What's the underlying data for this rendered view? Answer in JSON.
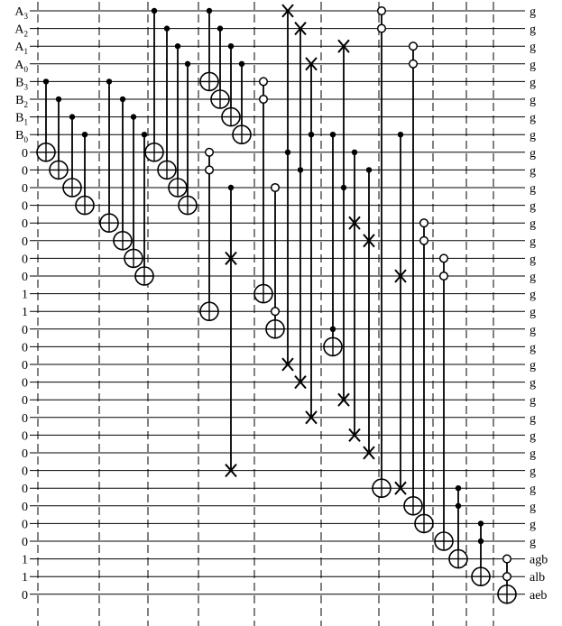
{
  "circuit": {
    "left_labels": [
      "A₃",
      "A₂",
      "A₁",
      "A₀",
      "B₃",
      "B₂",
      "B₁",
      "B₀",
      "0",
      "0",
      "0",
      "0",
      "0",
      "0",
      "0",
      "0",
      "1",
      "1",
      "0",
      "0",
      "0",
      "0",
      "0",
      "0",
      "0",
      "0",
      "0",
      "0",
      "0",
      "0",
      "0",
      "1",
      "1",
      "0"
    ],
    "right_labels": [
      "g",
      "g",
      "g",
      "g",
      "g",
      "g",
      "g",
      "g",
      "g",
      "g",
      "g",
      "g",
      "g",
      "g",
      "g",
      "g",
      "g",
      "g",
      "g",
      "g",
      "g",
      "g",
      "g",
      "g",
      "g",
      "g",
      "g",
      "g",
      "g",
      "g",
      "g",
      "agb",
      "alb",
      "aeb"
    ],
    "gates": [
      {
        "col": 0,
        "ctrls": [
          {
            "w": 4,
            "t": "dot"
          }
        ],
        "target": {
          "w": 8,
          "t": "xor"
        }
      },
      {
        "col": 1,
        "ctrls": [
          {
            "w": 5,
            "t": "dot"
          }
        ],
        "target": {
          "w": 9,
          "t": "xor"
        }
      },
      {
        "col": 2,
        "ctrls": [
          {
            "w": 6,
            "t": "dot"
          }
        ],
        "target": {
          "w": 10,
          "t": "xor"
        }
      },
      {
        "col": 3,
        "ctrls": [
          {
            "w": 7,
            "t": "dot"
          }
        ],
        "target": {
          "w": 11,
          "t": "xor"
        }
      },
      {
        "col": 4,
        "ctrls": [
          {
            "w": 4,
            "t": "dot"
          }
        ],
        "target": {
          "w": 12,
          "t": "xor"
        }
      },
      {
        "col": 5,
        "ctrls": [
          {
            "w": 5,
            "t": "dot"
          }
        ],
        "target": {
          "w": 13,
          "t": "xor"
        }
      },
      {
        "col": 6,
        "ctrls": [
          {
            "w": 6,
            "t": "dot"
          }
        ],
        "target": {
          "w": 14,
          "t": "xor"
        }
      },
      {
        "col": 7,
        "ctrls": [
          {
            "w": 7,
            "t": "dot"
          }
        ],
        "target": {
          "w": 15,
          "t": "xor"
        }
      },
      {
        "col": 8,
        "ctrls": [
          {
            "w": 0,
            "t": "dot"
          }
        ],
        "target": {
          "w": 8,
          "t": "xor"
        }
      },
      {
        "col": 9,
        "ctrls": [
          {
            "w": 1,
            "t": "dot"
          }
        ],
        "target": {
          "w": 9,
          "t": "xor"
        }
      },
      {
        "col": 10,
        "ctrls": [
          {
            "w": 2,
            "t": "dot"
          }
        ],
        "target": {
          "w": 10,
          "t": "xor"
        }
      },
      {
        "col": 11,
        "ctrls": [
          {
            "w": 3,
            "t": "dot"
          }
        ],
        "target": {
          "w": 11,
          "t": "xor"
        }
      },
      {
        "col": 12,
        "ctrls": [
          {
            "w": 0,
            "t": "dot"
          }
        ],
        "target": {
          "w": 4,
          "t": "xor"
        }
      },
      {
        "col": 13,
        "ctrls": [
          {
            "w": 1,
            "t": "dot"
          }
        ],
        "target": {
          "w": 5,
          "t": "xor"
        }
      },
      {
        "col": 14,
        "ctrls": [
          {
            "w": 2,
            "t": "dot"
          }
        ],
        "target": {
          "w": 6,
          "t": "xor"
        }
      },
      {
        "col": 15,
        "ctrls": [
          {
            "w": 3,
            "t": "dot"
          }
        ],
        "target": {
          "w": 7,
          "t": "xor"
        }
      },
      {
        "col": 12,
        "ctrls": [
          {
            "w": 8,
            "t": "open"
          },
          {
            "w": 9,
            "t": "open"
          }
        ],
        "target": {
          "w": 17,
          "t": "xor"
        }
      },
      {
        "col": 14,
        "ctrls": [
          {
            "w": 10,
            "t": "dot"
          }
        ],
        "target": {
          "w": 14,
          "t": "swap"
        },
        "swap2": {
          "w": 26,
          "t": "swap"
        }
      },
      {
        "col": 16,
        "ctrls": [
          {
            "w": 4,
            "t": "open"
          },
          {
            "w": 5,
            "t": "open"
          }
        ],
        "target": {
          "w": 16,
          "t": "xor"
        }
      },
      {
        "col": 17,
        "ctrls": [
          {
            "w": 10,
            "t": "open"
          },
          {
            "w": 17,
            "t": "open"
          }
        ],
        "target": {
          "w": 18,
          "t": "xor"
        }
      },
      {
        "col": 18,
        "ctrls": [
          {
            "w": 8,
            "t": "dot"
          }
        ],
        "target": {
          "w": 0,
          "t": "swap"
        },
        "swap2": {
          "w": 20,
          "t": "swap"
        }
      },
      {
        "col": 19,
        "ctrls": [
          {
            "w": 9,
            "t": "dot"
          }
        ],
        "target": {
          "w": 1,
          "t": "swap"
        },
        "swap2": {
          "w": 21,
          "t": "swap"
        }
      },
      {
        "col": 20,
        "ctrls": [
          {
            "w": 7,
            "t": "dot"
          }
        ],
        "target": {
          "w": 3,
          "t": "swap"
        },
        "swap2": {
          "w": 23,
          "t": "swap"
        }
      },
      {
        "col": 21,
        "ctrls": [
          {
            "w": 7,
            "t": "dot"
          },
          {
            "w": 18,
            "t": "dot"
          }
        ],
        "target": {
          "w": 19,
          "t": "xor"
        }
      },
      {
        "col": 22,
        "ctrls": [
          {
            "w": 10,
            "t": "dot"
          }
        ],
        "target": {
          "w": 2,
          "t": "swap"
        },
        "swap2": {
          "w": 22,
          "t": "swap"
        }
      },
      {
        "col": 23,
        "ctrls": [
          {
            "w": 8,
            "t": "dot"
          }
        ],
        "target": {
          "w": 12,
          "t": "swap"
        },
        "swap2": {
          "w": 24,
          "t": "swap"
        }
      },
      {
        "col": 24,
        "ctrls": [
          {
            "w": 9,
            "t": "dot"
          }
        ],
        "target": {
          "w": 13,
          "t": "swap"
        },
        "swap2": {
          "w": 25,
          "t": "swap"
        }
      },
      {
        "col": 25,
        "ctrls": [
          {
            "w": 0,
            "t": "open"
          },
          {
            "w": 1,
            "t": "open"
          }
        ],
        "target": {
          "w": 27,
          "t": "xor"
        }
      },
      {
        "col": 26,
        "ctrls": [
          {
            "w": 7,
            "t": "dot"
          }
        ],
        "target": {
          "w": 15,
          "t": "swap"
        },
        "swap2": {
          "w": 27,
          "t": "swap"
        }
      },
      {
        "col": 27,
        "ctrls": [
          {
            "w": 2,
            "t": "open"
          },
          {
            "w": 3,
            "t": "open"
          }
        ],
        "target": {
          "w": 28,
          "t": "xor"
        }
      },
      {
        "col": 28,
        "ctrls": [
          {
            "w": 12,
            "t": "open"
          },
          {
            "w": 13,
            "t": "open"
          }
        ],
        "target": {
          "w": 29,
          "t": "xor"
        }
      },
      {
        "col": 29,
        "ctrls": [
          {
            "w": 14,
            "t": "open"
          },
          {
            "w": 15,
            "t": "open"
          }
        ],
        "target": {
          "w": 30,
          "t": "xor"
        }
      },
      {
        "col": 30,
        "ctrls": [
          {
            "w": 27,
            "t": "dot"
          },
          {
            "w": 28,
            "t": "dot"
          }
        ],
        "target": {
          "w": 31,
          "t": "xor"
        }
      },
      {
        "col": 31,
        "ctrls": [
          {
            "w": 29,
            "t": "dot"
          },
          {
            "w": 30,
            "t": "dot"
          }
        ],
        "target": {
          "w": 32,
          "t": "xor"
        }
      },
      {
        "col": 32,
        "ctrls": [
          {
            "w": 31,
            "t": "open"
          },
          {
            "w": 32,
            "t": "open"
          }
        ],
        "target": {
          "w": 33,
          "t": "xor"
        }
      }
    ]
  }
}
